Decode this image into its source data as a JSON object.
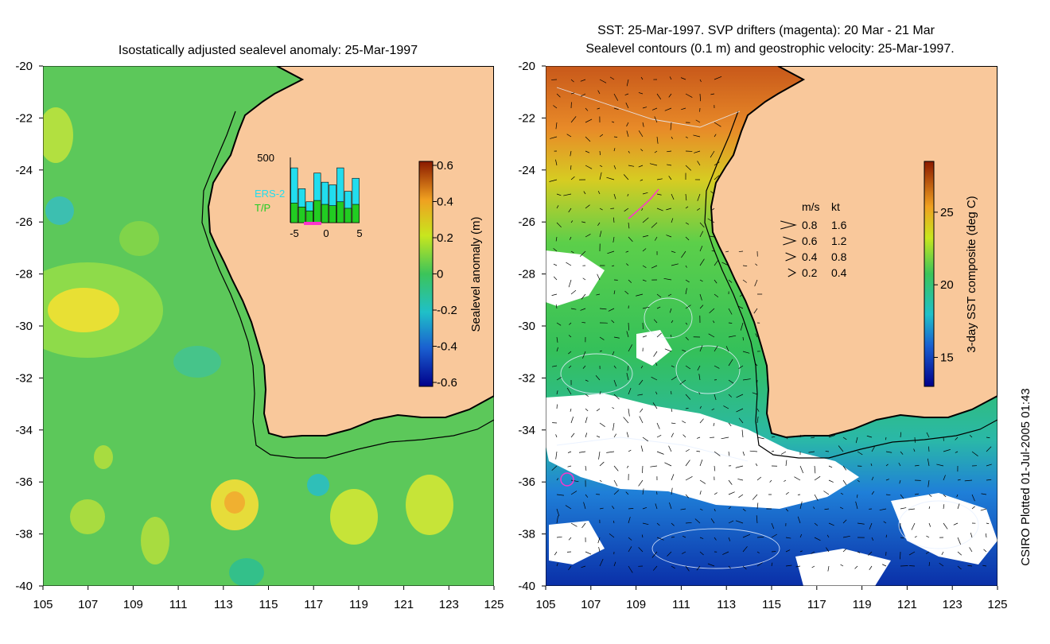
{
  "left_panel": {
    "title": "Isostatically adjusted sealevel anomaly: 25-Mar-1997",
    "colorbar": {
      "label": "Sealevel anomaly (m)",
      "ticks": [
        "0.6",
        "0.4",
        "0.2",
        "0",
        "-0.2",
        "-0.4",
        "-0.6"
      ],
      "range": [
        -0.6,
        0.6
      ]
    },
    "inset": {
      "y_label": "500",
      "x_ticks": [
        "-5",
        "0",
        "5"
      ],
      "legend": [
        "ERS-2",
        "T/P"
      ],
      "colors": {
        "ers2": "#22ddee",
        "tp": "#22cc22",
        "highlight": "#ff33cc"
      },
      "ers2_counts": [
        420,
        260,
        160,
        380,
        310,
        290,
        420,
        240,
        340
      ],
      "tp_counts": [
        150,
        120,
        90,
        170,
        140,
        130,
        160,
        110,
        140
      ]
    }
  },
  "right_panel": {
    "title_line1": "SST: 25-Mar-1997. SVP drifters (magenta): 20 Mar - 21 Mar",
    "title_line2": "Sealevel contours (0.1 m) and geostrophic velocity: 25-Mar-1997.",
    "colorbar": {
      "label": "3-day SST composite (deg C)",
      "ticks": [
        "25",
        "20",
        "15"
      ],
      "range": [
        13,
        28.5
      ]
    },
    "velocity_legend": {
      "header_ms": "m/s",
      "header_kt": "kt",
      "rows": [
        {
          "ms": "0.8",
          "kt": "1.6"
        },
        {
          "ms": "0.6",
          "kt": "1.2"
        },
        {
          "ms": "0.4",
          "kt": "0.8"
        },
        {
          "ms": "0.2",
          "kt": "0.4"
        }
      ]
    }
  },
  "axes": {
    "lat_ticks": [
      "-20",
      "-22",
      "-24",
      "-26",
      "-28",
      "-30",
      "-32",
      "-34",
      "-36",
      "-38",
      "-40"
    ],
    "lon_ticks": [
      "105",
      "107",
      "109",
      "111",
      "113",
      "115",
      "117",
      "119",
      "121",
      "123",
      "125"
    ],
    "lon_range": [
      105,
      125
    ],
    "lat_range": [
      -40,
      -20
    ]
  },
  "credit": "CSIRO Plotted 01-Jul-2005 01:43",
  "colors": {
    "land": "#f9c89b",
    "ocean_green": "#56c85a",
    "coast": "#000000"
  }
}
